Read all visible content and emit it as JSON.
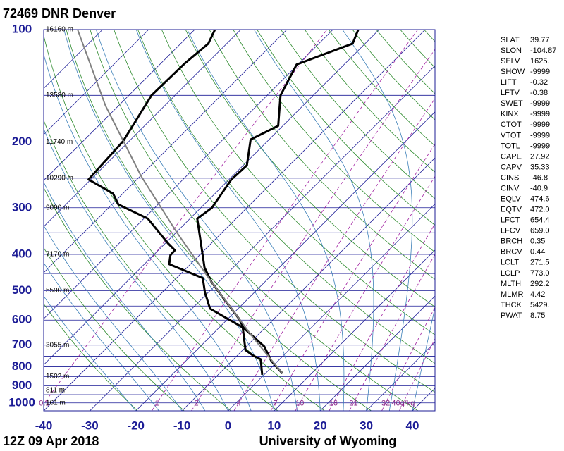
{
  "chart_data": {
    "type": "skew-t",
    "title": "72469 DNR Denver",
    "footer_left": "12Z 09 Apr 2018",
    "footer_right": "University of Wyoming",
    "xlim": [
      -40,
      44.9
    ],
    "xticks": [
      -40,
      -30,
      -20,
      -10,
      0,
      10,
      20,
      30,
      40
    ],
    "ylim": [
      100,
      1050
    ],
    "log_scale": true,
    "yticks": [
      100,
      200,
      300,
      400,
      500,
      600,
      700,
      800,
      900,
      1000
    ],
    "isobars": [
      100,
      150,
      200,
      250,
      300,
      350,
      400,
      450,
      500,
      550,
      600,
      650,
      700,
      750,
      800,
      850,
      900,
      950,
      1000,
      1050
    ],
    "isotherms": [
      -110,
      -100,
      -90,
      -80,
      -70,
      -60,
      -50,
      -40,
      -30,
      -20,
      -10,
      0,
      10,
      20,
      30,
      40
    ],
    "heights": [
      {
        "pressure": 100,
        "label": "16160 m"
      },
      {
        "pressure": 150,
        "label": "13580 m"
      },
      {
        "pressure": 200,
        "label": "11740 m"
      },
      {
        "pressure": 250,
        "label": "10290 m"
      },
      {
        "pressure": 300,
        "label": "9090 m"
      },
      {
        "pressure": 400,
        "label": "7170 m"
      },
      {
        "pressure": 500,
        "label": "5590 m"
      },
      {
        "pressure": 700,
        "label": "3055 m"
      },
      {
        "pressure": 850,
        "label": "1502 m"
      },
      {
        "pressure": 925,
        "label": "811 m"
      },
      {
        "pressure": 1000,
        "label": "161 m"
      }
    ],
    "mixing_ratios": [
      {
        "value": 0.1,
        "label": "0.1"
      },
      {
        "value": 1,
        "label": "1"
      },
      {
        "value": 2,
        "label": "2"
      },
      {
        "value": 4,
        "label": "4"
      },
      {
        "value": 7,
        "label": "7"
      },
      {
        "value": 10,
        "label": "10"
      },
      {
        "value": 16,
        "label": "16"
      },
      {
        "value": 21,
        "label": "21"
      },
      {
        "value": 32,
        "label": "32"
      },
      {
        "value": 40,
        "label": "40g/kg"
      }
    ],
    "series": [
      {
        "color": "#000000",
        "width": 3,
        "pressure": [
          834,
          771,
          706,
          628,
          597,
          528,
          474,
          434,
          321,
          300,
          252,
          231,
          197,
          181,
          150,
          124,
          109,
          100
        ],
        "values": [
          3.7,
          -1.5,
          -6.1,
          -14.8,
          -17.4,
          -25,
          -31.6,
          -36.2,
          -48.4,
          -47.6,
          -49.5,
          -49.2,
          -54,
          -51,
          -57.1,
          -60.3,
          -52.7,
          -54.5
        ]
      },
      {
        "color": "#000000",
        "width": 3,
        "pressure": [
          841,
          764,
          748,
          722,
          628,
          559,
          505,
          463,
          425,
          402,
          390,
          373,
          321,
          294,
          275,
          252,
          199,
          150,
          123,
          109,
          100
        ],
        "values": [
          -0.4,
          -4.1,
          -6.4,
          -9.4,
          -14.9,
          -26.1,
          -30.8,
          -34.3,
          -44.6,
          -46.3,
          -46.4,
          -49.5,
          -59.1,
          -68.6,
          -72.1,
          -80.5,
          -81.3,
          -85.1,
          -84.8,
          -84,
          -85.6
        ]
      },
      {
        "color": "#808080",
        "width": 2,
        "pressure": [
          834,
          671,
          564,
          474,
          349,
          247,
          160,
          100
        ],
        "values": [
          3.7,
          -10.2,
          -20.9,
          -31.6,
          -49.9,
          -69.8,
          -92.8,
          -115.4
        ]
      }
    ],
    "indices": [
      [
        "SLAT",
        "39.77"
      ],
      [
        "SLON",
        "-104.87"
      ],
      [
        "SELV",
        "1625."
      ],
      [
        "SHOW",
        "-9999"
      ],
      [
        "LIFT",
        "-0.32"
      ],
      [
        "LFTV",
        "-0.38"
      ],
      [
        "SWET",
        "-9999"
      ],
      [
        "KINX",
        "-9999"
      ],
      [
        "CTOT",
        "-9999"
      ],
      [
        "VTOT",
        "-9999"
      ],
      [
        "TOTL",
        "-9999"
      ],
      [
        "CAPE",
        "27.92"
      ],
      [
        "CAPV",
        "35.33"
      ],
      [
        "CINS",
        "-46.8"
      ],
      [
        "CINV",
        "-40.9"
      ],
      [
        "EQLV",
        "474.6"
      ],
      [
        "EQTV",
        "472.0"
      ],
      [
        "LFCT",
        "654.4"
      ],
      [
        "LFCV",
        "659.0"
      ],
      [
        "BRCH",
        "0.35"
      ],
      [
        "BRCV",
        "0.44"
      ],
      [
        "LCLT",
        "271.5"
      ],
      [
        "LCLP",
        "773.0"
      ],
      [
        "MLTH",
        "292.2"
      ],
      [
        "MLMR",
        "4.42"
      ],
      [
        "THCK",
        "5429."
      ],
      [
        "PWAT",
        "8.75"
      ]
    ]
  }
}
